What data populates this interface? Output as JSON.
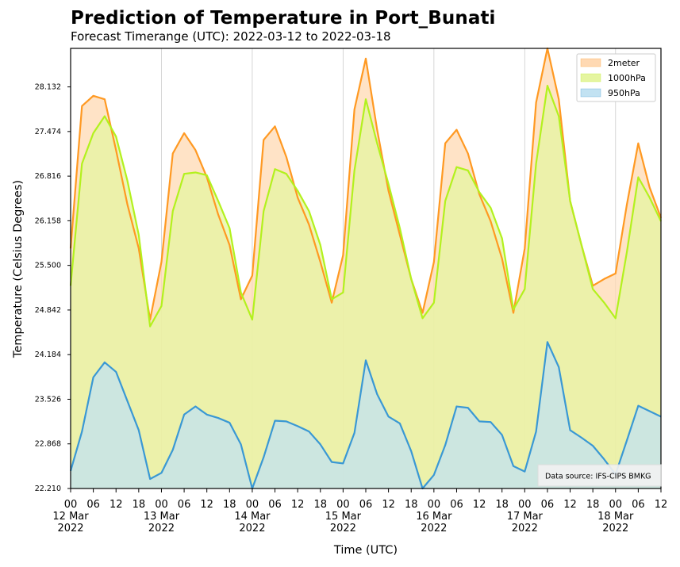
{
  "chart_data": {
    "type": "area",
    "title": "Prediction of Temperature in Port_Bunati",
    "subtitle": "Forecast Timerange (UTC): 2022-03-12 to 2022-03-18",
    "xlabel": "Time (UTC)",
    "ylabel": "Temperature (Celsius Degrees)",
    "ylim": [
      22.21,
      28.7
    ],
    "yticks": [
      "22.210",
      "22.868",
      "23.526",
      "24.184",
      "24.842",
      "25.500",
      "26.158",
      "26.816",
      "27.474",
      "28.132"
    ],
    "xlim": [
      0,
      156
    ],
    "x_tick_hours": [
      0,
      6,
      12,
      18,
      24,
      30,
      36,
      42,
      48,
      54,
      60,
      66,
      72,
      78,
      84,
      90,
      96,
      102,
      108,
      114,
      120,
      126,
      132,
      138,
      144,
      150,
      156
    ],
    "x_tick_labels": [
      "00\n12 Mar\n2022",
      "06",
      "12",
      "18",
      "00\n13 Mar\n2022",
      "06",
      "12",
      "18",
      "00\n14 Mar\n2022",
      "06",
      "12",
      "18",
      "00\n15 Mar\n2022",
      "06",
      "12",
      "18",
      "00\n16 Mar\n2022",
      "06",
      "12",
      "18",
      "00\n17 Mar\n2022",
      "06",
      "12",
      "18",
      "00\n18 Mar\n2022",
      "06",
      "12"
    ],
    "x_hours": [
      0,
      3,
      6,
      9,
      12,
      15,
      18,
      21,
      24,
      27,
      30,
      33,
      36,
      39,
      42,
      45,
      48,
      51,
      54,
      57,
      60,
      63,
      66,
      69,
      72,
      75,
      78,
      81,
      84,
      87,
      90,
      93,
      96,
      99,
      102,
      105,
      108,
      111,
      114,
      117,
      120,
      123,
      126,
      129,
      132,
      135,
      138,
      141,
      144,
      147,
      150,
      153,
      156
    ],
    "legend_position": "top-right",
    "grid": "x-only",
    "note": "Data source: IFS-CIPS BMKG",
    "series": [
      {
        "name": "2meter",
        "color": "#ff9922",
        "fill": "#ffd9b3",
        "values": [
          25.75,
          27.85,
          28.0,
          27.95,
          27.2,
          26.4,
          25.75,
          24.7,
          25.55,
          27.15,
          27.45,
          27.2,
          26.8,
          26.25,
          25.8,
          25.0,
          25.35,
          27.35,
          27.55,
          27.1,
          26.5,
          26.1,
          25.55,
          24.95,
          25.65,
          27.8,
          28.55,
          27.5,
          26.6,
          25.95,
          25.3,
          24.8,
          25.55,
          27.3,
          27.5,
          27.15,
          26.55,
          26.15,
          25.6,
          24.8,
          25.75,
          27.9,
          28.7,
          27.95,
          26.45,
          25.8,
          25.2,
          25.3,
          25.38,
          26.4,
          27.3,
          26.65,
          26.2
        ]
      },
      {
        "name": "1000hPa",
        "color": "#b3f11e",
        "fill": "#e5f5a0",
        "values": [
          25.2,
          27.0,
          27.45,
          27.7,
          27.4,
          26.75,
          25.95,
          24.6,
          24.9,
          26.3,
          26.85,
          26.87,
          26.83,
          26.45,
          26.05,
          25.1,
          24.7,
          26.3,
          26.92,
          26.85,
          26.6,
          26.3,
          25.8,
          25.0,
          25.1,
          26.9,
          27.95,
          27.3,
          26.7,
          26.05,
          25.3,
          24.72,
          24.95,
          26.45,
          26.95,
          26.9,
          26.58,
          26.35,
          25.9,
          24.85,
          25.15,
          27.0,
          28.15,
          27.7,
          26.45,
          25.8,
          25.15,
          24.95,
          24.72,
          25.7,
          26.8,
          26.5,
          26.15
        ]
      },
      {
        "name": "950hPa",
        "color": "#3a98d4",
        "fill": "#c2e2f2",
        "values": [
          22.47,
          23.05,
          23.85,
          24.07,
          23.93,
          23.5,
          23.07,
          22.35,
          22.44,
          22.78,
          23.3,
          23.42,
          23.3,
          23.25,
          23.18,
          22.86,
          22.21,
          22.67,
          23.21,
          23.2,
          23.13,
          23.05,
          22.86,
          22.6,
          22.58,
          23.03,
          24.1,
          23.6,
          23.27,
          23.17,
          22.76,
          22.21,
          22.41,
          22.85,
          23.42,
          23.4,
          23.2,
          23.19,
          23.0,
          22.54,
          22.46,
          23.05,
          24.37,
          24.0,
          23.07,
          22.96,
          22.84,
          22.64,
          22.42,
          22.92,
          23.43,
          23.35,
          23.27
        ]
      }
    ]
  }
}
